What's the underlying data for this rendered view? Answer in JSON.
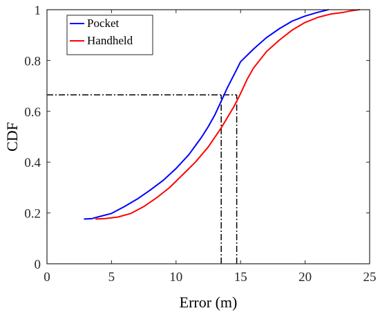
{
  "chart_data": {
    "type": "line",
    "title": "",
    "xlabel": "Error (m)",
    "ylabel": "CDF",
    "xlim": [
      0,
      25
    ],
    "ylim": [
      0,
      1
    ],
    "xticks": [
      0,
      5,
      10,
      15,
      20,
      25
    ],
    "yticks": [
      0,
      0.2,
      0.4,
      0.6,
      0.8,
      1
    ],
    "xtick_labels": [
      "0",
      "5",
      "10",
      "15",
      "20",
      "25"
    ],
    "ytick_labels": [
      "0",
      "0.2",
      "0.4",
      "0.6",
      "0.8",
      "1"
    ],
    "grid": false,
    "legend_position": "top-left",
    "series": [
      {
        "name": "Pocket",
        "color": "#0000ff",
        "points": [
          [
            2.9,
            0.176
          ],
          [
            3.5,
            0.178
          ],
          [
            4.0,
            0.185
          ],
          [
            5.0,
            0.198
          ],
          [
            6.0,
            0.225
          ],
          [
            7.0,
            0.255
          ],
          [
            8.0,
            0.29
          ],
          [
            9.0,
            0.328
          ],
          [
            10.0,
            0.375
          ],
          [
            11.0,
            0.43
          ],
          [
            12.0,
            0.5
          ],
          [
            12.5,
            0.54
          ],
          [
            13.0,
            0.585
          ],
          [
            13.5,
            0.64
          ],
          [
            14.0,
            0.695
          ],
          [
            14.5,
            0.745
          ],
          [
            15.0,
            0.795
          ],
          [
            16.0,
            0.845
          ],
          [
            17.0,
            0.89
          ],
          [
            18.0,
            0.925
          ],
          [
            19.0,
            0.955
          ],
          [
            20.0,
            0.975
          ],
          [
            21.0,
            0.99
          ],
          [
            21.8,
            1.0
          ]
        ]
      },
      {
        "name": "Handheld",
        "color": "#ff0000",
        "points": [
          [
            3.8,
            0.176
          ],
          [
            4.5,
            0.178
          ],
          [
            5.5,
            0.184
          ],
          [
            6.5,
            0.198
          ],
          [
            7.5,
            0.225
          ],
          [
            8.5,
            0.26
          ],
          [
            9.5,
            0.3
          ],
          [
            10.5,
            0.35
          ],
          [
            11.5,
            0.4
          ],
          [
            12.5,
            0.46
          ],
          [
            13.5,
            0.535
          ],
          [
            14.5,
            0.62
          ],
          [
            15.0,
            0.67
          ],
          [
            15.5,
            0.725
          ],
          [
            16.0,
            0.77
          ],
          [
            17.0,
            0.835
          ],
          [
            18.0,
            0.88
          ],
          [
            19.0,
            0.92
          ],
          [
            20.0,
            0.95
          ],
          [
            21.0,
            0.97
          ],
          [
            22.0,
            0.983
          ],
          [
            23.0,
            0.99
          ],
          [
            23.5,
            0.995
          ],
          [
            24.2,
            1.0
          ]
        ]
      }
    ],
    "reference_lines": [
      {
        "kind": "horizontal",
        "y": 0.665,
        "x_from": 0,
        "x_to": 14.7,
        "style": "dash-dot",
        "color": "#000000"
      },
      {
        "kind": "vertical",
        "x": 13.5,
        "y_from": 0,
        "y_to": 0.665,
        "style": "dash-dot",
        "color": "#000000"
      },
      {
        "kind": "vertical",
        "x": 14.7,
        "y_from": 0,
        "y_to": 0.665,
        "style": "dash-dot",
        "color": "#000000"
      }
    ]
  }
}
